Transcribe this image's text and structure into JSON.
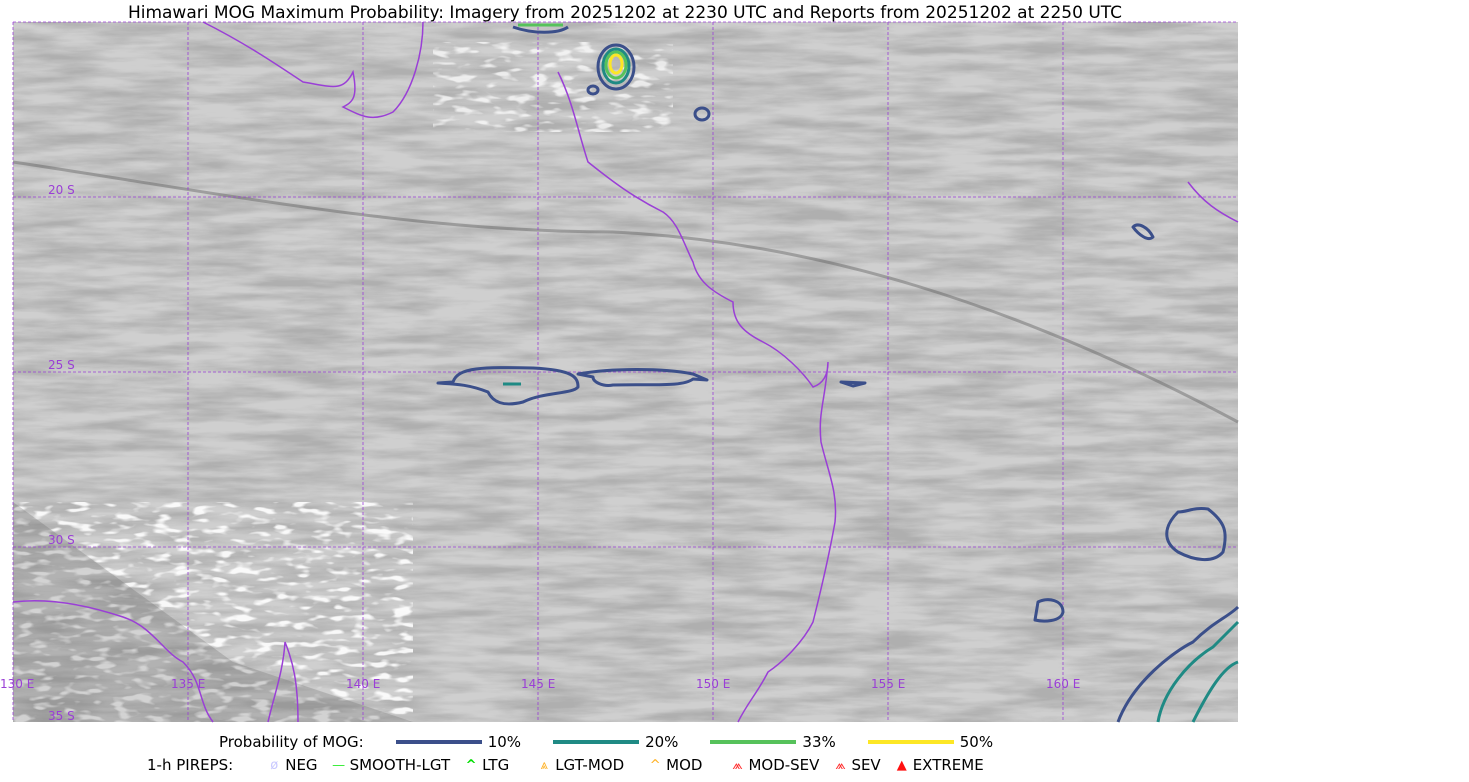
{
  "title": "Himawari MOG Maximum Probability: Imagery from 20251202 at 2230 UTC and Reports from 20251202 at 2250 UTC",
  "map": {
    "lon_labels": [
      "130 E",
      "135 E",
      "140 E",
      "145 E",
      "150 E",
      "155 E",
      "160 E"
    ],
    "lat_labels": [
      "20 S",
      "25 S",
      "30 S",
      "35 S"
    ],
    "grid_color": "#9a3fd6",
    "coast_color": "#9a3fd6"
  },
  "legend": {
    "prob_label": "Probability of MOG:",
    "levels": [
      {
        "label": "10%",
        "color": "#3b4f8a"
      },
      {
        "label": "20%",
        "color": "#1f8a84"
      },
      {
        "label": "33%",
        "color": "#56c25b"
      },
      {
        "label": "50%",
        "color": "#fde725"
      }
    ],
    "pirep_label": "1-h PIREPS:",
    "pireps": [
      {
        "label": "NEG",
        "color": "#c8c8ff",
        "icon": "neg-icon"
      },
      {
        "label": "SMOOTH-LGT",
        "color": "#33ee33",
        "icon": "smooth-lgt-icon"
      },
      {
        "label": "LTG",
        "color": "#00dd00",
        "icon": "ltg-icon"
      },
      {
        "label": "LGT-MOD",
        "color": "#ffb020",
        "icon": "lgt-mod-icon"
      },
      {
        "label": "MOD",
        "color": "#ffb020",
        "icon": "mod-icon"
      },
      {
        "label": "MOD-SEV",
        "color": "#ff3030",
        "icon": "mod-sev-icon"
      },
      {
        "label": "SEV",
        "color": "#ff3030",
        "icon": "sev-icon"
      },
      {
        "label": "EXTREME",
        "color": "#ff1010",
        "icon": "extreme-icon"
      }
    ]
  }
}
